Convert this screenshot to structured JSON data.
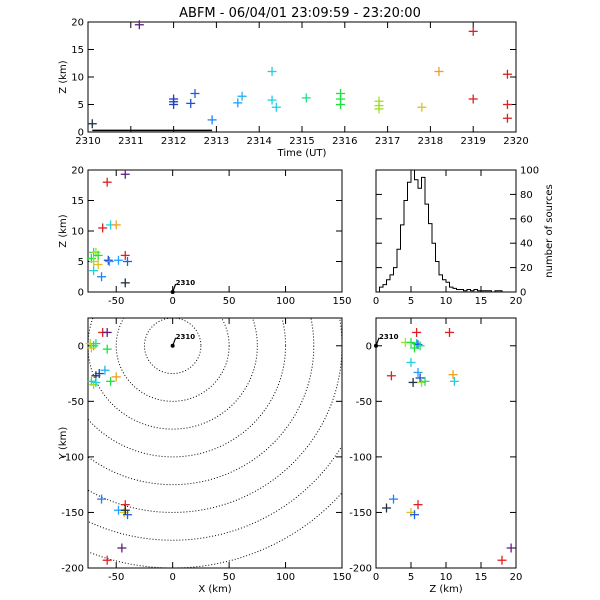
{
  "title": "ABFM - 06/04/01 23:09:59 - 23:20:00",
  "chart_data": [
    {
      "id": "time-height",
      "type": "scatter",
      "xlabel": "Time (UT)",
      "ylabel": "Z (km)",
      "xlim": [
        2310,
        2320
      ],
      "ylim": [
        0,
        20
      ],
      "xticks": [
        2310,
        2311,
        2312,
        2313,
        2314,
        2315,
        2316,
        2317,
        2318,
        2319,
        2320
      ],
      "yticks": [
        0,
        5,
        10,
        15,
        20
      ],
      "points": [
        {
          "x": 2310.1,
          "y": 1.5,
          "color": "#203040"
        },
        {
          "x": 2311.2,
          "y": 19.5,
          "color": "#602080"
        },
        {
          "x": 2312.0,
          "y": 6.0,
          "color": "#2040c0"
        },
        {
          "x": 2312.0,
          "y": 5.5,
          "color": "#2040c0"
        },
        {
          "x": 2312.0,
          "y": 5.0,
          "color": "#2040c0"
        },
        {
          "x": 2312.4,
          "y": 5.2,
          "color": "#2050d0"
        },
        {
          "x": 2312.5,
          "y": 7.0,
          "color": "#2060e0"
        },
        {
          "x": 2312.9,
          "y": 2.2,
          "color": "#2080ff"
        },
        {
          "x": 2313.5,
          "y": 5.3,
          "color": "#20a0ff"
        },
        {
          "x": 2313.6,
          "y": 6.5,
          "color": "#20b0f0"
        },
        {
          "x": 2314.3,
          "y": 11.0,
          "color": "#20d0e0"
        },
        {
          "x": 2314.3,
          "y": 5.8,
          "color": "#20d0e0"
        },
        {
          "x": 2314.4,
          "y": 4.5,
          "color": "#20d0e0"
        },
        {
          "x": 2315.1,
          "y": 6.2,
          "color": "#20e080"
        },
        {
          "x": 2315.9,
          "y": 7.0,
          "color": "#20e040"
        },
        {
          "x": 2315.9,
          "y": 6.0,
          "color": "#20e040"
        },
        {
          "x": 2315.9,
          "y": 5.0,
          "color": "#20e040"
        },
        {
          "x": 2316.8,
          "y": 5.6,
          "color": "#a0e020"
        },
        {
          "x": 2316.8,
          "y": 4.8,
          "color": "#a0e020"
        },
        {
          "x": 2316.8,
          "y": 4.2,
          "color": "#a0e020"
        },
        {
          "x": 2317.8,
          "y": 4.5,
          "color": "#e0c020"
        },
        {
          "x": 2318.2,
          "y": 11.0,
          "color": "#f0a020"
        },
        {
          "x": 2319.0,
          "y": 18.3,
          "color": "#e02020"
        },
        {
          "x": 2319.0,
          "y": 6.0,
          "color": "#e02020"
        },
        {
          "x": 2319.8,
          "y": 10.5,
          "color": "#e02020"
        },
        {
          "x": 2319.8,
          "y": 5.0,
          "color": "#e02020"
        },
        {
          "x": 2319.8,
          "y": 2.5,
          "color": "#e02020"
        }
      ]
    },
    {
      "id": "x-height",
      "type": "scatter",
      "xlabel": "",
      "ylabel": "Z (km)",
      "xlim": [
        -75,
        150
      ],
      "ylim": [
        0,
        20
      ],
      "xticks": [
        -50,
        0,
        50,
        100,
        150
      ],
      "yticks": [
        0,
        5,
        10,
        15,
        20
      ],
      "station_label": "2310",
      "station": {
        "x": 0,
        "y": 0
      },
      "points": [
        {
          "x": -42,
          "y": 19.3,
          "color": "#602080"
        },
        {
          "x": -58,
          "y": 18.0,
          "color": "#e02020"
        },
        {
          "x": -55,
          "y": 11.0,
          "color": "#20d0e0"
        },
        {
          "x": -50,
          "y": 11.0,
          "color": "#f0a020"
        },
        {
          "x": -62,
          "y": 10.5,
          "color": "#e02020"
        },
        {
          "x": -70,
          "y": 6.5,
          "color": "#20e080"
        },
        {
          "x": -68,
          "y": 6.5,
          "color": "#a0e020"
        },
        {
          "x": -66,
          "y": 6.0,
          "color": "#20e040"
        },
        {
          "x": -72,
          "y": 5.5,
          "color": "#20e040"
        },
        {
          "x": -70,
          "y": 5.0,
          "color": "#a0e020"
        },
        {
          "x": -66,
          "y": 4.5,
          "color": "#e0c020"
        },
        {
          "x": -70,
          "y": 3.5,
          "color": "#20d0e0"
        },
        {
          "x": -63,
          "y": 2.5,
          "color": "#2080ff"
        },
        {
          "x": -57,
          "y": 5.2,
          "color": "#2040c0"
        },
        {
          "x": -56,
          "y": 5.0,
          "color": "#20b0f0"
        },
        {
          "x": -48,
          "y": 5.2,
          "color": "#20a0ff"
        },
        {
          "x": -42,
          "y": 6.0,
          "color": "#e02020"
        },
        {
          "x": -40,
          "y": 5.0,
          "color": "#2060e0"
        },
        {
          "x": -42,
          "y": 1.5,
          "color": "#203040"
        }
      ]
    },
    {
      "id": "height-histogram",
      "type": "bar",
      "xlabel": "",
      "ylabel": "number of sources",
      "xlim": [
        0,
        20
      ],
      "ylim": [
        0,
        100
      ],
      "xticks": [
        0,
        5,
        10,
        15,
        20
      ],
      "yticks": [
        0,
        20,
        40,
        60,
        80,
        100
      ],
      "bin_width": 0.5,
      "x": [
        0.0,
        0.5,
        1.0,
        1.5,
        2.0,
        2.5,
        3.0,
        3.5,
        4.0,
        4.5,
        5.0,
        5.5,
        6.0,
        6.5,
        7.0,
        7.5,
        8.0,
        8.5,
        9.0,
        9.5,
        10.0,
        10.5,
        11.0,
        11.5,
        12.0,
        12.5,
        13.0,
        13.5,
        14.0,
        14.5,
        15.0,
        15.5,
        16.0,
        16.5,
        17.0,
        17.5,
        18.0,
        18.5,
        19.0,
        19.5
      ],
      "values": [
        0,
        4,
        6,
        10,
        14,
        20,
        35,
        55,
        75,
        90,
        100,
        92,
        85,
        94,
        72,
        56,
        40,
        25,
        14,
        10,
        8,
        4,
        3,
        2,
        2,
        1,
        2,
        1,
        2,
        1,
        1,
        1,
        1,
        0,
        1,
        1,
        0,
        0,
        0,
        0
      ]
    },
    {
      "id": "plan-view",
      "type": "scatter",
      "xlabel": "X (km)",
      "ylabel": "Y (km)",
      "xlim": [
        -75,
        150
      ],
      "ylim": [
        -200,
        25
      ],
      "xticks": [
        -50,
        0,
        50,
        100,
        150
      ],
      "yticks": [
        -200,
        -150,
        -100,
        -50,
        0
      ],
      "range_rings_km": [
        25,
        50,
        75,
        100,
        125,
        150,
        175,
        200
      ],
      "station_label": "2310",
      "station": {
        "x": 0,
        "y": 0
      },
      "points": [
        {
          "x": -62,
          "y": 12,
          "color": "#e02020"
        },
        {
          "x": -58,
          "y": 12,
          "color": "#602080"
        },
        {
          "x": -73,
          "y": 2,
          "color": "#a0e020"
        },
        {
          "x": -70,
          "y": 0,
          "color": "#20e040"
        },
        {
          "x": -68,
          "y": 2,
          "color": "#20e080"
        },
        {
          "x": -72,
          "y": -2,
          "color": "#e0c020"
        },
        {
          "x": -58,
          "y": -3,
          "color": "#20e040"
        },
        {
          "x": -68,
          "y": -27,
          "color": "#203040"
        },
        {
          "x": -65,
          "y": -25,
          "color": "#2040c0"
        },
        {
          "x": -60,
          "y": -22,
          "color": "#20b0f0"
        },
        {
          "x": -72,
          "y": -32,
          "color": "#20e080"
        },
        {
          "x": -70,
          "y": -35,
          "color": "#a0e020"
        },
        {
          "x": -68,
          "y": -33,
          "color": "#20d0e0"
        },
        {
          "x": -55,
          "y": -32,
          "color": "#20e040"
        },
        {
          "x": -50,
          "y": -28,
          "color": "#f0a020"
        },
        {
          "x": -63,
          "y": -138,
          "color": "#2080ff"
        },
        {
          "x": -48,
          "y": -148,
          "color": "#20a0ff"
        },
        {
          "x": -42,
          "y": -143,
          "color": "#e02020"
        },
        {
          "x": -43,
          "y": -150,
          "color": "#e0c020"
        },
        {
          "x": -40,
          "y": -152,
          "color": "#2060e0"
        },
        {
          "x": -42,
          "y": -148,
          "color": "#203040"
        },
        {
          "x": -45,
          "y": -182,
          "color": "#602080"
        },
        {
          "x": -58,
          "y": -193,
          "color": "#e02020"
        }
      ]
    },
    {
      "id": "height-y",
      "type": "scatter",
      "xlabel": "Z (km)",
      "ylabel": "",
      "xlim": [
        0,
        20
      ],
      "ylim": [
        -200,
        25
      ],
      "xticks": [
        0,
        5,
        10,
        15,
        20
      ],
      "yticks": [
        -200,
        -150,
        -100,
        -50,
        0
      ],
      "station_label": "2310",
      "station": {
        "x": 0,
        "y": 0
      },
      "points": [
        {
          "x": 5.8,
          "y": 12,
          "color": "#e02020"
        },
        {
          "x": 10.5,
          "y": 12,
          "color": "#e02020"
        },
        {
          "x": 4.2,
          "y": 3,
          "color": "#a0e020"
        },
        {
          "x": 5.0,
          "y": 3,
          "color": "#20e040"
        },
        {
          "x": 5.8,
          "y": 2,
          "color": "#20b0f0"
        },
        {
          "x": 6.0,
          "y": 1,
          "color": "#2060e0"
        },
        {
          "x": 6.3,
          "y": 0,
          "color": "#20e080"
        },
        {
          "x": 5.5,
          "y": -2,
          "color": "#20e040"
        },
        {
          "x": 5.0,
          "y": -15,
          "color": "#20d0e0"
        },
        {
          "x": 6.0,
          "y": -24,
          "color": "#20a0ff"
        },
        {
          "x": 2.2,
          "y": -27,
          "color": "#e02020"
        },
        {
          "x": 6.3,
          "y": -29,
          "color": "#2040c0"
        },
        {
          "x": 5.3,
          "y": -33,
          "color": "#203040"
        },
        {
          "x": 6.5,
          "y": -33,
          "color": "#a0e020"
        },
        {
          "x": 7.0,
          "y": -32,
          "color": "#20e080"
        },
        {
          "x": 11.0,
          "y": -26,
          "color": "#f0a020"
        },
        {
          "x": 11.2,
          "y": -32,
          "color": "#20d0e0"
        },
        {
          "x": 2.5,
          "y": -138,
          "color": "#2080ff"
        },
        {
          "x": 1.5,
          "y": -146,
          "color": "#203040"
        },
        {
          "x": 6.0,
          "y": -143,
          "color": "#e02020"
        },
        {
          "x": 5.0,
          "y": -150,
          "color": "#e0c020"
        },
        {
          "x": 5.5,
          "y": -152,
          "color": "#2060e0"
        },
        {
          "x": 18.0,
          "y": -193,
          "color": "#e02020"
        },
        {
          "x": 19.3,
          "y": -182,
          "color": "#602080"
        }
      ]
    }
  ]
}
